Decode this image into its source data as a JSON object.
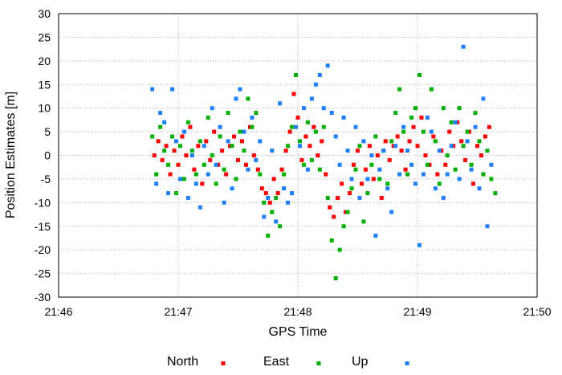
{
  "chart_data": {
    "type": "scatter",
    "xlabel": "GPS Time",
    "ylabel": "Position Estimates [m]",
    "xlim": [
      "21:46",
      "21:50"
    ],
    "ylim": [
      -30,
      30
    ],
    "x_ticks": [
      "21:46",
      "21:47",
      "21:48",
      "21:49",
      "21:50"
    ],
    "y_ticks": [
      -30,
      -25,
      -20,
      -15,
      -10,
      -5,
      0,
      5,
      10,
      15,
      20,
      25,
      30
    ],
    "grid": true,
    "legend_position": "bottom",
    "series": [
      {
        "name": "North",
        "color": "#ff0000",
        "points": [
          [
            "21:46:48",
            0
          ],
          [
            "21:46:50",
            3
          ],
          [
            "21:46:52",
            -1
          ],
          [
            "21:46:54",
            2
          ],
          [
            "21:46:56",
            -4
          ],
          [
            "21:46:58",
            1
          ],
          [
            "21:47:00",
            -2
          ],
          [
            "21:47:02",
            4
          ],
          [
            "21:47:04",
            0
          ],
          [
            "21:47:06",
            6
          ],
          [
            "21:47:08",
            -3
          ],
          [
            "21:47:10",
            2
          ],
          [
            "21:47:12",
            -6
          ],
          [
            "21:47:14",
            3
          ],
          [
            "21:47:16",
            -1
          ],
          [
            "21:47:18",
            5
          ],
          [
            "21:47:20",
            -2
          ],
          [
            "21:47:22",
            1
          ],
          [
            "21:47:24",
            -4
          ],
          [
            "21:47:26",
            2
          ],
          [
            "21:47:28",
            4
          ],
          [
            "21:47:30",
            -1
          ],
          [
            "21:47:32",
            3
          ],
          [
            "21:47:34",
            -2
          ],
          [
            "21:47:36",
            6
          ],
          [
            "21:47:38",
            0
          ],
          [
            "21:47:40",
            -3
          ],
          [
            "21:47:42",
            -7
          ],
          [
            "21:47:44",
            -8
          ],
          [
            "21:47:46",
            -10
          ],
          [
            "21:47:48",
            -5
          ],
          [
            "21:47:50",
            -8
          ],
          [
            "21:47:52",
            -3
          ],
          [
            "21:47:54",
            1
          ],
          [
            "21:47:56",
            5
          ],
          [
            "21:47:58",
            13
          ],
          [
            "21:48:00",
            8
          ],
          [
            "21:48:02",
            -1
          ],
          [
            "21:48:04",
            4
          ],
          [
            "21:48:06",
            2
          ],
          [
            "21:48:08",
            6
          ],
          [
            "21:48:10",
            0
          ],
          [
            "21:48:12",
            3
          ],
          [
            "21:48:14",
            -4
          ],
          [
            "21:48:16",
            -11
          ],
          [
            "21:48:18",
            -13
          ],
          [
            "21:48:20",
            -9
          ],
          [
            "21:48:22",
            -6
          ],
          [
            "21:48:24",
            -12
          ],
          [
            "21:48:26",
            -8
          ],
          [
            "21:48:28",
            -2
          ],
          [
            "21:48:30",
            1
          ],
          [
            "21:48:32",
            -6
          ],
          [
            "21:48:34",
            -3
          ],
          [
            "21:48:36",
            2
          ],
          [
            "21:48:38",
            -5
          ],
          [
            "21:48:40",
            0
          ],
          [
            "21:48:42",
            -9
          ],
          [
            "21:48:44",
            3
          ],
          [
            "21:48:46",
            -1
          ],
          [
            "21:48:48",
            2
          ],
          [
            "21:48:50",
            4
          ],
          [
            "21:48:52",
            1
          ],
          [
            "21:48:54",
            -3
          ],
          [
            "21:48:56",
            3
          ],
          [
            "21:48:58",
            6
          ],
          [
            "21:49:00",
            2
          ],
          [
            "21:49:02",
            8
          ],
          [
            "21:49:04",
            0
          ],
          [
            "21:49:06",
            -2
          ],
          [
            "21:49:08",
            4
          ],
          [
            "21:49:10",
            -4
          ],
          [
            "21:49:12",
            1
          ],
          [
            "21:49:14",
            -2
          ],
          [
            "21:49:16",
            5
          ],
          [
            "21:49:18",
            2
          ],
          [
            "21:49:20",
            7
          ],
          [
            "21:49:22",
            3
          ],
          [
            "21:49:24",
            -1
          ],
          [
            "21:49:26",
            5
          ],
          [
            "21:49:28",
            -6
          ],
          [
            "21:49:30",
            2
          ],
          [
            "21:49:32",
            0
          ],
          [
            "21:49:34",
            4
          ],
          [
            "21:49:36",
            6
          ]
        ]
      },
      {
        "name": "East",
        "color": "#00b000",
        "points": [
          [
            "21:46:47",
            4
          ],
          [
            "21:46:49",
            -4
          ],
          [
            "21:46:51",
            6
          ],
          [
            "21:46:53",
            1
          ],
          [
            "21:46:55",
            -2
          ],
          [
            "21:46:57",
            4
          ],
          [
            "21:46:59",
            -8
          ],
          [
            "21:47:01",
            2
          ],
          [
            "21:47:03",
            -5
          ],
          [
            "21:47:05",
            7
          ],
          [
            "21:47:07",
            1
          ],
          [
            "21:47:09",
            -4
          ],
          [
            "21:47:11",
            3
          ],
          [
            "21:47:13",
            -2
          ],
          [
            "21:47:15",
            8
          ],
          [
            "21:47:17",
            0
          ],
          [
            "21:47:19",
            -6
          ],
          [
            "21:47:21",
            4
          ],
          [
            "21:47:23",
            -3
          ],
          [
            "21:47:25",
            9
          ],
          [
            "21:47:27",
            2
          ],
          [
            "21:47:29",
            -5
          ],
          [
            "21:47:31",
            5
          ],
          [
            "21:47:33",
            1
          ],
          [
            "21:47:35",
            12
          ],
          [
            "21:47:37",
            6
          ],
          [
            "21:47:39",
            9
          ],
          [
            "21:47:41",
            -4
          ],
          [
            "21:47:43",
            -10
          ],
          [
            "21:47:45",
            -17
          ],
          [
            "21:47:47",
            -12
          ],
          [
            "21:47:49",
            -9
          ],
          [
            "21:47:51",
            -15
          ],
          [
            "21:47:53",
            -4
          ],
          [
            "21:47:55",
            2
          ],
          [
            "21:47:57",
            6
          ],
          [
            "21:47:59",
            17
          ],
          [
            "21:48:01",
            3
          ],
          [
            "21:48:03",
            -2
          ],
          [
            "21:48:05",
            7
          ],
          [
            "21:48:07",
            -1
          ],
          [
            "21:48:09",
            5
          ],
          [
            "21:48:11",
            -3
          ],
          [
            "21:48:13",
            6
          ],
          [
            "21:48:15",
            -9
          ],
          [
            "21:48:17",
            -18
          ],
          [
            "21:48:19",
            -26
          ],
          [
            "21:48:21",
            -20
          ],
          [
            "21:48:23",
            -15
          ],
          [
            "21:48:25",
            -12
          ],
          [
            "21:48:27",
            -7
          ],
          [
            "21:48:29",
            -3
          ],
          [
            "21:48:31",
            2
          ],
          [
            "21:48:33",
            -14
          ],
          [
            "21:48:35",
            -8
          ],
          [
            "21:48:37",
            -2
          ],
          [
            "21:48:39",
            4
          ],
          [
            "21:48:41",
            -5
          ],
          [
            "21:48:43",
            1
          ],
          [
            "21:48:45",
            -6
          ],
          [
            "21:48:47",
            3
          ],
          [
            "21:48:49",
            9
          ],
          [
            "21:48:51",
            14
          ],
          [
            "21:48:53",
            5
          ],
          [
            "21:48:55",
            -4
          ],
          [
            "21:48:57",
            8
          ],
          [
            "21:48:59",
            10
          ],
          [
            "21:49:01",
            17
          ],
          [
            "21:49:03",
            5
          ],
          [
            "21:49:05",
            -2
          ],
          [
            "21:49:07",
            14
          ],
          [
            "21:49:09",
            3
          ],
          [
            "21:49:11",
            -6
          ],
          [
            "21:49:13",
            10
          ],
          [
            "21:49:15",
            0
          ],
          [
            "21:49:17",
            7
          ],
          [
            "21:49:19",
            -3
          ],
          [
            "21:49:21",
            10
          ],
          [
            "21:49:23",
            2
          ],
          [
            "21:49:25",
            5
          ],
          [
            "21:49:27",
            -2
          ],
          [
            "21:49:29",
            9
          ],
          [
            "21:49:31",
            3
          ],
          [
            "21:49:33",
            -4
          ],
          [
            "21:49:35",
            1
          ],
          [
            "21:49:37",
            -5
          ],
          [
            "21:49:39",
            -8
          ]
        ]
      },
      {
        "name": "Up",
        "color": "#1e7fff",
        "points": [
          [
            "21:46:47",
            14
          ],
          [
            "21:46:49",
            -6
          ],
          [
            "21:46:51",
            9
          ],
          [
            "21:46:53",
            7
          ],
          [
            "21:46:55",
            -8
          ],
          [
            "21:46:57",
            14
          ],
          [
            "21:46:59",
            3
          ],
          [
            "21:47:01",
            -5
          ],
          [
            "21:47:03",
            5
          ],
          [
            "21:47:05",
            -9
          ],
          [
            "21:47:07",
            0
          ],
          [
            "21:47:09",
            -6
          ],
          [
            "21:47:11",
            -11
          ],
          [
            "21:47:13",
            2
          ],
          [
            "21:47:15",
            -4
          ],
          [
            "21:47:17",
            10
          ],
          [
            "21:47:19",
            -2
          ],
          [
            "21:47:21",
            6
          ],
          [
            "21:47:23",
            -10
          ],
          [
            "21:47:25",
            3
          ],
          [
            "21:47:27",
            -7
          ],
          [
            "21:47:29",
            12
          ],
          [
            "21:47:31",
            14
          ],
          [
            "21:47:33",
            5
          ],
          [
            "21:47:35",
            -3
          ],
          [
            "21:47:37",
            8
          ],
          [
            "21:47:39",
            -1
          ],
          [
            "21:47:41",
            3
          ],
          [
            "21:47:43",
            -13
          ],
          [
            "21:47:45",
            -9
          ],
          [
            "21:47:47",
            1
          ],
          [
            "21:47:49",
            -14
          ],
          [
            "21:47:51",
            11
          ],
          [
            "21:47:53",
            -7
          ],
          [
            "21:47:55",
            -10
          ],
          [
            "21:47:57",
            -8
          ],
          [
            "21:47:59",
            6
          ],
          [
            "21:48:01",
            2
          ],
          [
            "21:48:03",
            10
          ],
          [
            "21:48:05",
            -3
          ],
          [
            "21:48:07",
            12
          ],
          [
            "21:48:09",
            15
          ],
          [
            "21:48:11",
            17
          ],
          [
            "21:48:13",
            10
          ],
          [
            "21:48:15",
            19
          ],
          [
            "21:48:17",
            9
          ],
          [
            "21:48:19",
            4
          ],
          [
            "21:48:21",
            -2
          ],
          [
            "21:48:23",
            8
          ],
          [
            "21:48:25",
            1
          ],
          [
            "21:48:27",
            -5
          ],
          [
            "21:48:29",
            6
          ],
          [
            "21:48:31",
            -9
          ],
          [
            "21:48:33",
            3
          ],
          [
            "21:48:35",
            -5
          ],
          [
            "21:48:37",
            0
          ],
          [
            "21:48:39",
            -17
          ],
          [
            "21:48:41",
            -3
          ],
          [
            "21:48:43",
            1
          ],
          [
            "21:48:45",
            -7
          ],
          [
            "21:48:47",
            -12
          ],
          [
            "21:48:49",
            2
          ],
          [
            "21:48:51",
            -4
          ],
          [
            "21:48:53",
            6
          ],
          [
            "21:48:55",
            1
          ],
          [
            "21:48:57",
            -2
          ],
          [
            "21:48:59",
            -6
          ],
          [
            "21:49:01",
            -19
          ],
          [
            "21:49:03",
            -4
          ],
          [
            "21:49:05",
            8
          ],
          [
            "21:49:07",
            5
          ],
          [
            "21:49:09",
            -7
          ],
          [
            "21:49:11",
            1
          ],
          [
            "21:49:13",
            -9
          ],
          [
            "21:49:15",
            -4
          ],
          [
            "21:49:17",
            2
          ],
          [
            "21:49:19",
            7
          ],
          [
            "21:49:21",
            -5
          ],
          [
            "21:49:23",
            23
          ],
          [
            "21:49:25",
            3
          ],
          [
            "21:49:27",
            -3
          ],
          [
            "21:49:29",
            6
          ],
          [
            "21:49:31",
            -7
          ],
          [
            "21:49:33",
            12
          ],
          [
            "21:49:35",
            -15
          ],
          [
            "21:49:37",
            -2
          ]
        ]
      }
    ]
  }
}
